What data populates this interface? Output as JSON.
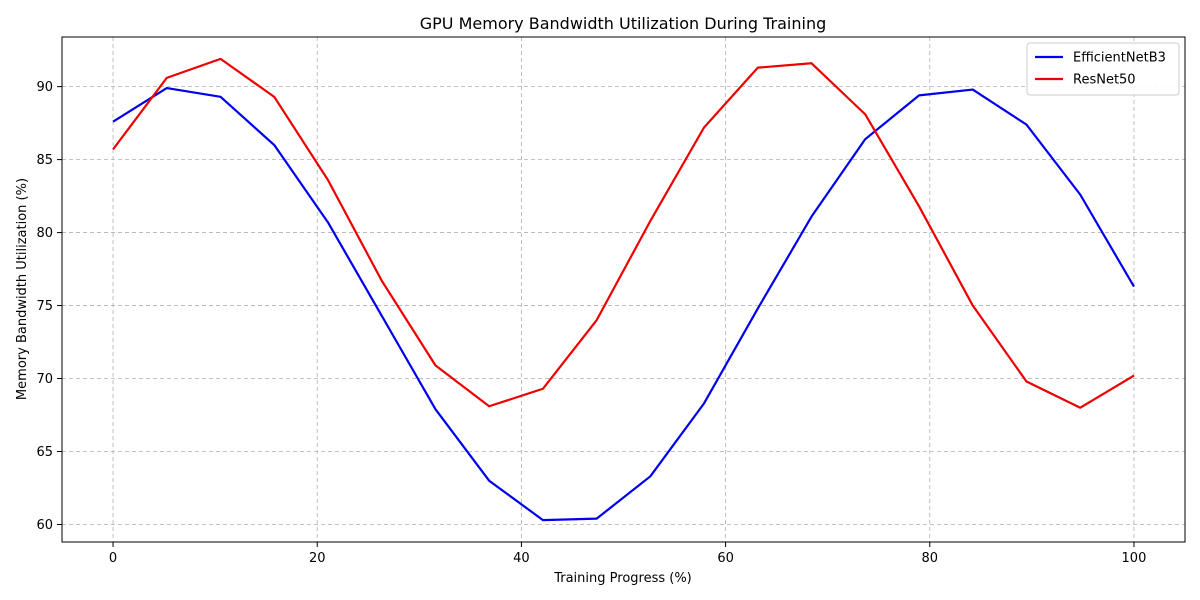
{
  "chart_data": {
    "type": "line",
    "title": "GPU Memory Bandwidth Utilization During Training",
    "xlabel": "Training Progress (%)",
    "ylabel": "Memory Bandwidth Utilization (%)",
    "xlim": [
      -5,
      105
    ],
    "ylim": [
      58.8,
      93.4
    ],
    "xticks": [
      0,
      20,
      40,
      60,
      80,
      100
    ],
    "yticks": [
      60,
      65,
      70,
      75,
      80,
      85,
      90
    ],
    "grid": true,
    "legend_position": "top-right",
    "x": [
      0,
      5.26,
      10.53,
      15.79,
      21.05,
      26.32,
      31.58,
      36.84,
      42.11,
      47.37,
      52.63,
      57.89,
      63.16,
      68.42,
      73.68,
      78.95,
      84.21,
      89.47,
      94.74,
      100
    ],
    "series": [
      {
        "name": "EfficientNetB3",
        "color": "#0000ee",
        "values": [
          87.6,
          89.9,
          89.3,
          86.0,
          80.7,
          74.3,
          67.9,
          63.0,
          60.3,
          60.4,
          63.3,
          68.3,
          74.8,
          81.1,
          86.4,
          89.4,
          89.8,
          87.4,
          82.6,
          76.3
        ]
      },
      {
        "name": "ResNet50",
        "color": "#ee0000",
        "values": [
          85.7,
          90.6,
          91.9,
          89.3,
          83.6,
          76.7,
          70.9,
          68.1,
          69.3,
          74.0,
          80.8,
          87.2,
          91.3,
          91.6,
          88.1,
          81.8,
          75.0,
          69.8,
          68.0,
          70.2
        ]
      }
    ]
  }
}
